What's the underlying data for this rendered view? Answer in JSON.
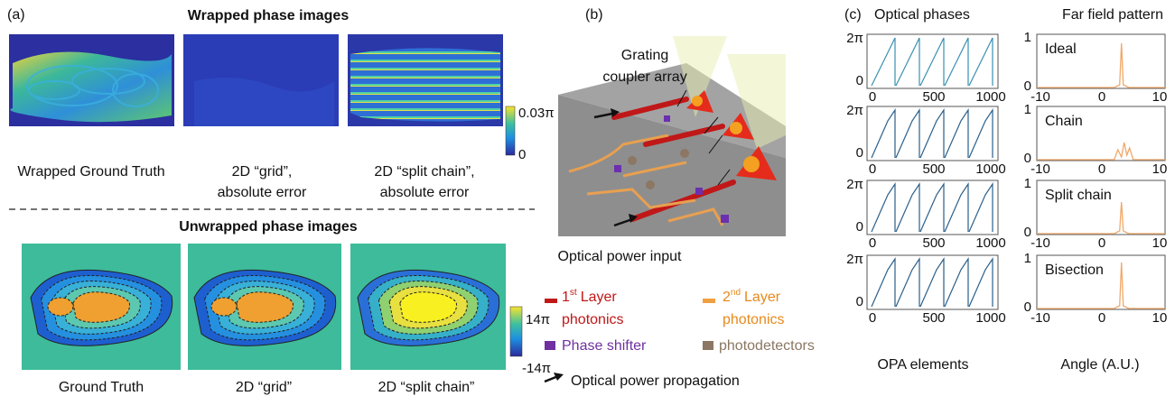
{
  "panel_a": {
    "label": "(a)",
    "wrapped_title": "Wrapped phase images",
    "wrapped_captions": [
      [
        "Wrapped Ground Truth"
      ],
      [
        "2D “grid”,",
        "absolute error"
      ],
      [
        "2D “split chain”,",
        "absolute error"
      ]
    ],
    "wrapped_colorbar": [
      "0.03π",
      "0"
    ],
    "unwrapped_title": "Unwrapped phase images",
    "unwrapped_captions": [
      "Ground Truth",
      "2D “grid”",
      "2D “split chain”"
    ],
    "unwrapped_colorbar": [
      "14π",
      "-14π"
    ]
  },
  "panel_b": {
    "label": "(b)",
    "grating_label": [
      "Grating",
      "coupler array"
    ],
    "input_label": "Optical power input",
    "legend": [
      {
        "num": "1",
        "sup": "st",
        "line1": "Layer",
        "line2": "photonics"
      },
      {
        "num": "2",
        "sup": "nd",
        "line1": "Layer",
        "line2": "photonics"
      },
      {
        "text": "Phase shifter"
      },
      {
        "text": "photodetectors"
      },
      {
        "text": "Optical power propagation"
      }
    ]
  },
  "panel_c": {
    "label": "(c)",
    "left_title": "Optical phases",
    "right_title": "Far field pattern",
    "left_yticks": [
      "2π",
      "0"
    ],
    "left_xticks": [
      "0",
      "500",
      "1000"
    ],
    "right_yticks": [
      "1",
      "0"
    ],
    "right_xticks": [
      "-10",
      "0",
      "10"
    ],
    "methods": [
      "Ideal",
      "Chain",
      "Split chain",
      "Bisection"
    ],
    "left_xlabel": "OPA elements",
    "right_xlabel": "Angle (A.U.)"
  }
}
